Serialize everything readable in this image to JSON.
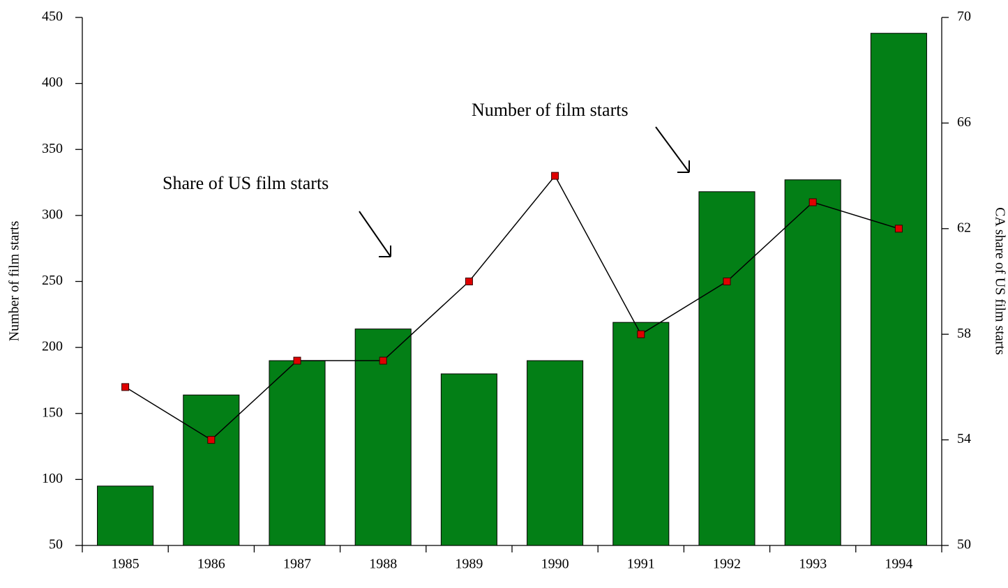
{
  "chart_data": {
    "type": "bar_line",
    "categories": [
      "1985",
      "1986",
      "1987",
      "1988",
      "1989",
      "1990",
      "1991",
      "1992",
      "1993",
      "1994"
    ],
    "series": [
      {
        "name": "Number of film starts",
        "type": "bar",
        "color": "#037f16",
        "values": [
          95,
          164,
          190,
          214,
          180,
          190,
          219,
          318,
          327,
          438
        ]
      },
      {
        "name": "Share of US film starts",
        "type": "line",
        "axis": "y2",
        "color": "#000000",
        "marker_color": "#e00000",
        "values": [
          56,
          54,
          57,
          57,
          60,
          64,
          58,
          60,
          63,
          62
        ]
      }
    ],
    "ylabel": "Number of film starts",
    "y2label": "CA share of US film starts",
    "ylim": [
      50,
      450
    ],
    "yticks": [
      50,
      100,
      150,
      200,
      250,
      300,
      350,
      400,
      450
    ],
    "y2lim": [
      50,
      70
    ],
    "y2ticks": [
      50,
      54,
      58,
      62,
      66,
      70
    ],
    "grid": false
  }
}
